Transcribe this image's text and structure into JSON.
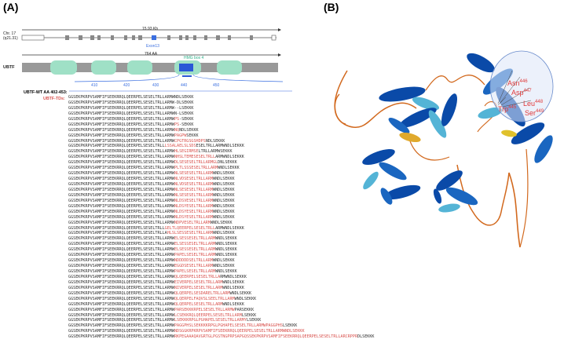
{
  "panel_a": {
    "label": "(A)",
    "chr_label_line1": "Chr. 17",
    "chr_label_line2": "(q21.31)",
    "gene_size": "15.93 Kb",
    "exon_label": "Exon13",
    "protein_size": "764 AA",
    "protein_label": "UBTF",
    "hmg_label": "HMG box 4",
    "ruler_ticks": [
      "410",
      "420",
      "430",
      "440",
      "450"
    ],
    "wt_label": "UBTF-WT AA 402-453:",
    "td_label": "UBTF-TDs:",
    "sequences": [
      {
        "black": "GGSEKPKRPVSAMFIFSEEKRRQLQEERPELSESELTRLLARMWNDLSEKKK",
        "red": "",
        "tail": ""
      },
      {
        "black": "GGSEKPKRPVSAMFIFSEEKRRQLQEERPELSESELTRLLARMW",
        "red": "",
        "tail": "-DLSEKKK"
      },
      {
        "black": "GGSEKPKRPVSAMFIFSEEKRRQLQEERPELSESELTRLLARMW",
        "red": "",
        "tail": "--LSEKKK"
      },
      {
        "black": "GGSEKPKRPVSAMFIFSEEKRRQLQEERPELSESELTRLLARMW",
        "red": "",
        "tail": "N-LSEKKK"
      },
      {
        "black": "GGSEKPKRPVSAMFIFSEEKRRQLQEERPELSESELTRLLARMW",
        "red": "PS",
        "tail": "-SEKKK"
      },
      {
        "black": "GGSEKPKRPVSAMFIFSEEKRRQLQEERPELSESELTRLLARMW",
        "red": "PS",
        "tail": "-SEKKK"
      },
      {
        "black": "GGSEKPKRPVSAMFIFSEEKRRQLQEERPELSESELTRLLARMW",
        "red": "NQ",
        "tail": "NDLSEKKK"
      },
      {
        "black": "GGSEKPKRPVSAMFIFSEEKRRQLQEERPELSESELTRLLARMW",
        "red": "PAGPW",
        "tail": "SEKKK"
      },
      {
        "black": "GGSEKPKRPVSAMFIFSEEKRRQLQEERPELSESELTRLLARMW",
        "red": "CPGTRGSGSHDPS",
        "tail": "NDLSEKKK"
      },
      {
        "black": "GGSEKPKRPVSAMFIFSEEKRRQLQEERPELSESELTRLL",
        "red": "LSSALAELSLSDS",
        "tail": "ESELTRLLARMWNDLSEKKK"
      },
      {
        "black": "GGSEKPKRPVSAMFIFSEEKRRQLQEERPELSESELTRLLARMW",
        "red": "HLSEGIRMSE",
        "tail": "LTRLLARMWSEKKK"
      },
      {
        "black": "GGSEKPKRPVSAMFIFSEEKRRQLQEERPELSESELTRLLARMW",
        "red": "NHSLTEMESESELTRLL",
        "tail": "ARMWNDLSEKKK"
      },
      {
        "black": "GGSEKPKRPVSAMFIFSEEKRRQLQEERPELSESELTRLLARMW",
        "red": "DLSESESELTRLLARMGL",
        "tail": "DNLSEKKK"
      },
      {
        "black": "GGSEKPKRPVSAMFIFSEEKRRQLQEERPELSESELTRLLARMW",
        "red": "PLTLSSSESELTRLLARM",
        "tail": "WNDLSEKKK"
      },
      {
        "black": "GGSEKPKRPVSAMFIFSEEKRRQLQEERPELSESELTRLLARMW",
        "red": "NLSESESELTRLLARM",
        "tail": "WNDLSEKKK"
      },
      {
        "black": "GGSEKPKRPVSAMFIFSEEKRRQLQEERPELSESELTRLLARMW",
        "red": "NLVDSESELTRLLARM",
        "tail": "WNDLSEKKK"
      },
      {
        "black": "GGSEKPKRPVSAMFIFSEEKRRQLQEERPELSESELTRLLARMW",
        "red": "NLVDSESELTRLLARM",
        "tail": "WNDLSEKKK"
      },
      {
        "black": "GGSEKPKRPVSAMFIFSEEKRRQLQEERPELSESELTRLLARMW",
        "red": "NLSESESELTRLLARM",
        "tail": "WNDLSEKKK"
      },
      {
        "black": "GGSEKPKRPVSAMFIFSEEKRRQLQEERPELSESELTRLLARMW",
        "red": "NLSESESELTRLLARM",
        "tail": "WNDLSEKKK"
      },
      {
        "black": "GGSEKPKRPVSAMFIFSEEKRRQLQEERPELSESELTRLLARMW",
        "red": "NLDSVESELTRLLARM",
        "tail": "WNDLSEKKK"
      },
      {
        "black": "GGSEKPKRPVSAMFIFSEEKRRQLQEERPELSESELTRLLARMW",
        "red": "NLDSYESELTRLLARM",
        "tail": "WNDLSEKKK"
      },
      {
        "black": "GGSEKPKRPVSAMFIFSEEKRRQLQEERPELSESELTRLLARMW",
        "red": "NLDSYESELTRLLARM",
        "tail": "WNDLSEKKK"
      },
      {
        "black": "GGSEKPKRPVSAMFIFSEEKRRQLQEERPELSESELTRLLARMW",
        "red": "NLDSYESELTRLLARM",
        "tail": "WNDLSEKKK"
      },
      {
        "black": "GGSEKPKRPVSAMFIFSEEKRRQLQEERPELSESELTRLLARMW",
        "red": "NDPVESELTRLLARM",
        "tail": "WNDLSEKKK"
      },
      {
        "black": "GGSEKPKRPVSAMFIFSEEKRRQLQEERPELSESELTRLL",
        "red": "GELTLQEERPELSESELTRLL",
        "tail": "ARMWNDLSEKKK"
      },
      {
        "black": "GGSEKPKRPVSAMFIFSEEKRRQLQEERPELSESELTRLLA",
        "red": "HLSLSESSESELTRLLARM",
        "tail": "WNDLSEKKK"
      },
      {
        "black": "GGSEKPKRPVSAMFIFSEEKRRQLQEERPELSESELTRLLARMW",
        "red": "ELSESSESELTRLLARM",
        "tail": "WNDLSEKKK"
      },
      {
        "black": "GGSEKPKRPVSAMFIFSEEKRRQLQEERPELSESELTRLLARMW",
        "red": "ELSESSESELTRLLARM",
        "tail": "WNDLSEKKK"
      },
      {
        "black": "GGSEKPKRPVSAMFIFSEEKRRQLQEERPELSESELTRLLARMW",
        "red": "ELSESSESELTRLLARM",
        "tail": "WNDLSEKKK"
      },
      {
        "black": "GGSEKPKRPVSAMFIFSEEKRRQLQEERPELSESELTRLLARMW",
        "red": "PAPELSESELTRLLARM",
        "tail": "WNDLSEKKK"
      },
      {
        "black": "GGSEKPKRPVSAMFIFSEEKRRQLQEERPELSESELTRLLARMW",
        "red": "NDDDDDSELTRLLARM",
        "tail": "WNDLSEKKK"
      },
      {
        "black": "GGSEKPKRPVSAMFIFSEEKRRQLQEERPELSESELTRLLARMW",
        "red": "EGGDSESELTRLLARM",
        "tail": "WNDLSEKKK"
      },
      {
        "black": "GGSEKPKRPVSAMFIFSEEKRRQLQEERPELSESELTRLLARMW",
        "red": "PAPELSESELTRLLARM",
        "tail": "WNDLSEKKK"
      },
      {
        "black": "GGSEKPKRPVSAMFIFSEEKRRQLQEERPELSESELTRLLARMW",
        "red": "QLQEERPELSESELTRLLA",
        "tail": "RMWNDLSEKKK"
      },
      {
        "black": "GGSEKPKRPVSAMFIFSEEKRRQLQEERPELSESELTRLLARMW",
        "red": "EIVERPELSESELTRLLARM",
        "tail": "WNDLSEKKK"
      },
      {
        "black": "GGSEKPKRPVSAMFIFSEEKRRQLQEERPELSESELTRLLARMW",
        "red": "NIVERPELSESELTRLLARM",
        "tail": "WNDLSEKKK"
      },
      {
        "black": "GGSEKPKRPVSAMFIFSEEKRRQLQEERPELSESELTRLLARMW",
        "red": "QLQERPELSESDARELTRLLARM",
        "tail": "WNDLSEKKK"
      },
      {
        "black": "GGSEKPKRPVSAMFIFSEEKRRQLQEERPELSESELTRLLARMW",
        "red": "QLQERPELFAQVSLSEELTRLLARM",
        "tail": "WNDLSEKKK"
      },
      {
        "black": "GGSEKPKRPVSAMFIFSEEKRRQLQEERPELSESELTRLLARMW",
        "red": "QLQERPELSESELTRLLARM",
        "tail": "WNDLSEKKK"
      },
      {
        "black": "GGSEKPKRPVSAMFIFSEEKRRQLQEERPELSESELTRLLARMW",
        "red": "PARSEKKKRPELSESELTRLLARMW",
        "tail": "PARSEKKK"
      },
      {
        "black": "GGSEKPKRPVSAMFIFSEEKRRQLQEERPELSESELTRLLARMW",
        "red": "LCSEKKRQLQEERPELSESELTRLLARM",
        "tail": "LSEKKK"
      },
      {
        "black": "GGSEKPKRPVSAMFIFSEEKRRQLQEERPELSESELTRLLARMW",
        "red": "LSEKKKRPGLPGHAPELSESELTRLLARMY",
        "tail": "LSEKKK"
      },
      {
        "black": "GGSEKPKRPVSAMFIFSEEKRRQLQEERPELSESELTRLLARMW",
        "red": "PAGGPHSLSEKKKKRPGLPGHAPELSESELTRLLARMWPAGGPHS",
        "tail": "LSEKKK"
      },
      {
        "black": "GGSEKPKRPVSAMFIFSEEKRRQLQEERPELSESELTRLLARMW",
        "red": "NDSGGKRPKRPVSAMFIFSEEKRRQLQEERPELSESELTRLLARMWNDLSEKKK",
        "tail": ""
      },
      {
        "black": "GGSEKPKRPVSAMFIFSEEKRRQLQEERPELSESELTRLLARMW",
        "red": "RKPEGAAAQAVGRTGLPGSTNGPRPSAPGQSSEKPKRPVSAMFIFSEEKRRQLQEERPELSESELTRLLARCRPPR",
        "tail": "DLSEKKK"
      }
    ]
  },
  "panel_b": {
    "label": "(B)",
    "residues": [
      {
        "name": "Asn",
        "num": "446"
      },
      {
        "name": "Asp",
        "num": "447"
      },
      {
        "name": "Leu",
        "num": "448"
      },
      {
        "name": "Trp",
        "num": "445"
      },
      {
        "name": "Ser",
        "num": "449"
      }
    ]
  },
  "colors": {
    "exon_highlight": "#3b6fe0",
    "domain_green": "#9fe0c6",
    "hmg_blue": "#2a58d6",
    "mutation_red": "#d9534f",
    "helix_dark": "#0a4aa8",
    "helix_light": "#54b4d6",
    "coil_orange": "#d2691e"
  }
}
